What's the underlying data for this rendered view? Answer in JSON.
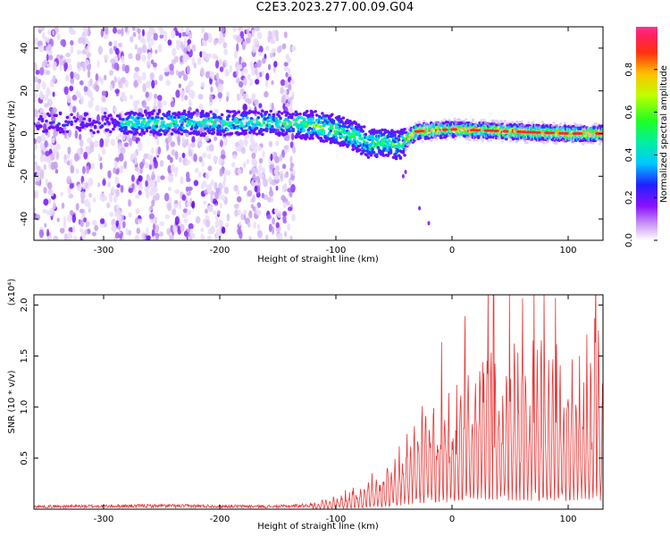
{
  "title": "C2E3.2023.277.00.09.G04",
  "chart_data": [
    {
      "type": "heatmap",
      "xlabel": "Height of straight line (km)",
      "ylabel": "Frequency (Hz)",
      "xlim": [
        -360,
        130
      ],
      "ylim": [
        -50,
        50
      ],
      "xticks": [
        -300,
        -200,
        -100,
        0,
        100
      ],
      "xtick_labels": [
        "-300",
        "-200",
        "-100",
        "0",
        "100"
      ],
      "yticks": [
        -40,
        -20,
        0,
        20,
        40
      ],
      "ytick_labels": [
        "-40",
        "-20",
        "0",
        "20",
        "40"
      ],
      "colorbar": {
        "label": "Normalized spectral amplitude",
        "range": [
          0,
          1
        ],
        "ticks": [
          0.0,
          0.2,
          0.4,
          0.6,
          0.8
        ],
        "tick_labels": [
          "0.0",
          "0.2",
          "0.4",
          "0.6",
          "0.8"
        ]
      },
      "ridge": {
        "x": [
          -280,
          -250,
          -200,
          -150,
          -120,
          -100,
          -80,
          -70,
          -60,
          -50,
          -45,
          -40,
          -30,
          0,
          50,
          100,
          130
        ],
        "freq": [
          5,
          5,
          5,
          5,
          4,
          2,
          -2,
          -5,
          -4,
          -5,
          -6,
          -3,
          1,
          2,
          1,
          0,
          0
        ]
      },
      "colors": [
        "#ffffff",
        "#c8a8f0",
        "#7a1cff",
        "#2030ff",
        "#00e5ff",
        "#00ff40",
        "#ffff00",
        "#ff2020"
      ]
    },
    {
      "type": "line",
      "xlabel": "Height of straight line (km)",
      "ylabel": "SNR (10 * v/v)",
      "ylabel_multiplier": "(x10⁴)",
      "xlim": [
        -360,
        130
      ],
      "ylim": [
        0,
        21000
      ],
      "xticks": [
        -300,
        -200,
        -100,
        0,
        100
      ],
      "xtick_labels": [
        "-300",
        "-200",
        "-100",
        "0",
        "100"
      ],
      "yticks": [
        5000,
        10000,
        15000,
        20000
      ],
      "ytick_labels": [
        "0.5",
        "1.0",
        "1.5",
        "2.0"
      ],
      "envelope": {
        "x": [
          -360,
          -250,
          -200,
          -150,
          -120,
          -100,
          -80,
          -60,
          -40,
          -20,
          0,
          20,
          35,
          60,
          80,
          100,
          115,
          125,
          130
        ],
        "y": [
          400,
          500,
          450,
          400,
          600,
          1500,
          2500,
          4500,
          8000,
          12000,
          14000,
          16000,
          17500,
          16500,
          17000,
          16000,
          18000,
          19500,
          13000
        ]
      },
      "color": "#e83535"
    }
  ]
}
